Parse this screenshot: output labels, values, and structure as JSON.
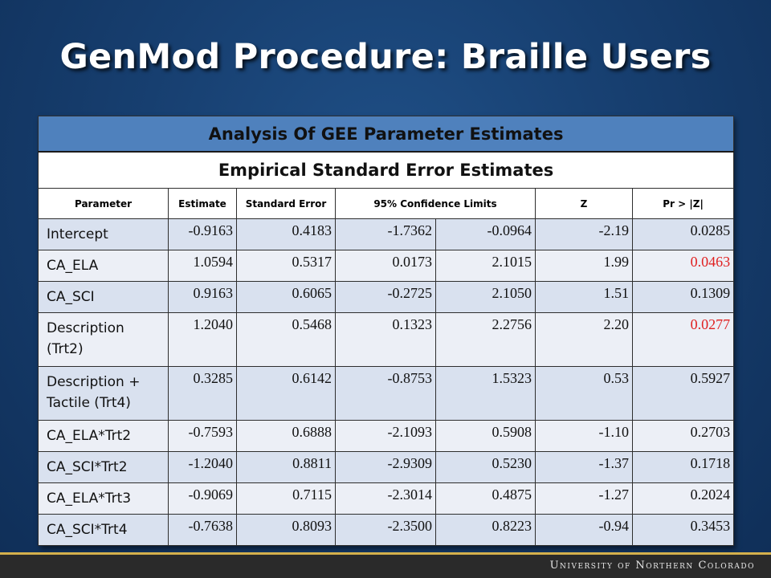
{
  "title": "GenMod Procedure: Braille Users",
  "table": {
    "header1": "Analysis Of GEE Parameter Estimates",
    "header2": "Empirical Standard Error Estimates",
    "columns": [
      "Parameter",
      "Estimate",
      "Standard Error",
      "95% Confidence Limits",
      "Z",
      "Pr > |Z|"
    ],
    "rows": [
      {
        "param": "Intercept",
        "estimate": "-0.9163",
        "se": "0.4183",
        "lower": "-1.7362",
        "upper": "-0.0964",
        "z": "-2.19",
        "p": "0.0285",
        "highlight": false
      },
      {
        "param": "CA_ELA",
        "estimate": "1.0594",
        "se": "0.5317",
        "lower": "0.0173",
        "upper": "2.1015",
        "z": "1.99",
        "p": "0.0463",
        "highlight": true
      },
      {
        "param": "CA_SCI",
        "estimate": "0.9163",
        "se": "0.6065",
        "lower": "-0.2725",
        "upper": "2.1050",
        "z": "1.51",
        "p": "0.1309",
        "highlight": false
      },
      {
        "param": "Description (Trt2)",
        "estimate": "1.2040",
        "se": "0.5468",
        "lower": "0.1323",
        "upper": "2.2756",
        "z": "2.20",
        "p": "0.0277",
        "highlight": true
      },
      {
        "param": "Description + Tactile (Trt4)",
        "estimate": "0.3285",
        "se": "0.6142",
        "lower": "-0.8753",
        "upper": "1.5323",
        "z": "0.53",
        "p": "0.5927",
        "highlight": false
      },
      {
        "param": "CA_ELA*Trt2",
        "estimate": "-0.7593",
        "se": "0.6888",
        "lower": "-2.1093",
        "upper": "0.5908",
        "z": "-1.10",
        "p": "0.2703",
        "highlight": false
      },
      {
        "param": "CA_SCI*Trt2",
        "estimate": "-1.2040",
        "se": "0.8811",
        "lower": "-2.9309",
        "upper": "0.5230",
        "z": "-1.37",
        "p": "0.1718",
        "highlight": false
      },
      {
        "param": "CA_ELA*Trt3",
        "estimate": "-0.9069",
        "se": "0.7115",
        "lower": "-2.3014",
        "upper": "0.4875",
        "z": "-1.27",
        "p": "0.2024",
        "highlight": false
      },
      {
        "param": "CA_SCI*Trt4",
        "estimate": "-0.7638",
        "se": "0.8093",
        "lower": "-2.3500",
        "upper": "0.8223",
        "z": "-0.94",
        "p": "0.3453",
        "highlight": false
      }
    ]
  },
  "footer": "University of Northern Colorado",
  "colors": {
    "significant": "#e02020",
    "header_blue": "#4f81bd",
    "gold": "#d4b04c"
  }
}
